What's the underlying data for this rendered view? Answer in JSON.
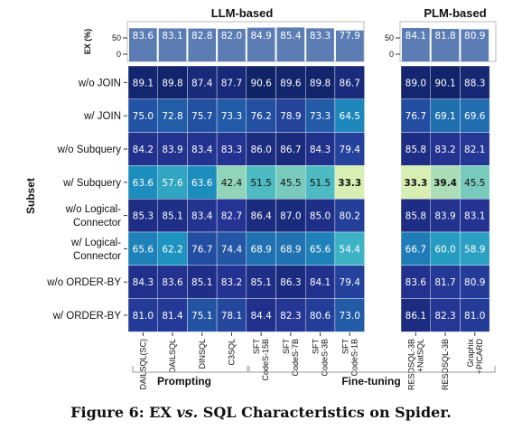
{
  "chart_data": {
    "type": "heatmap",
    "caption": {
      "prefix": "Figure 6: EX ",
      "vs": "vs.",
      "suffix": " SQL Characteristics on Spider."
    },
    "group_labels": {
      "llm": "LLM-based",
      "plm": "PLM-based"
    },
    "bottom_group_labels": {
      "prompting": "Prompting",
      "finetuning": "Fine-tuning"
    },
    "ylabel": "Subset",
    "bar_axis": {
      "label": "EX (%)",
      "ticks": [
        "50",
        "0"
      ],
      "range": [
        0,
        100
      ]
    },
    "rows": [
      [
        "w/o JOIN"
      ],
      [
        "w/ JOIN"
      ],
      [
        "w/o Subquery"
      ],
      [
        "w/ Subquery"
      ],
      [
        "w/o Logical-",
        "Connector"
      ],
      [
        "w/ Logical-",
        "Connector"
      ],
      [
        "w/o ORDER-BY"
      ],
      [
        "w/ ORDER-BY"
      ]
    ],
    "llm_columns": [
      [
        "DAILSQL(SC)"
      ],
      [
        "DAILSQL"
      ],
      [
        "DINSQL"
      ],
      [
        "C3SQL"
      ],
      [
        "SFT",
        "CodeS-15B"
      ],
      [
        "SFT",
        "CodeS-7B"
      ],
      [
        "SFT",
        "CodeS-3B"
      ],
      [
        "SFT",
        "CodeS-1B"
      ]
    ],
    "plm_columns": [
      [
        "RESDSQL-3B",
        "+NatSQL"
      ],
      [
        "RESDSQL-3B"
      ],
      [
        "Graphix",
        "+PICARD"
      ]
    ],
    "llm_overall": [
      83.6,
      83.1,
      82.8,
      82.0,
      84.9,
      85.4,
      83.3,
      77.9
    ],
    "plm_overall": [
      84.1,
      81.8,
      80.9
    ],
    "llm_values": [
      [
        89.1,
        89.8,
        87.4,
        87.7,
        90.6,
        89.6,
        89.8,
        86.7
      ],
      [
        75.0,
        72.8,
        75.7,
        73.3,
        76.2,
        78.9,
        73.3,
        64.5
      ],
      [
        84.2,
        83.9,
        83.4,
        83.3,
        86.0,
        86.7,
        84.3,
        79.4
      ],
      [
        63.6,
        57.6,
        63.6,
        42.4,
        51.5,
        45.5,
        51.5,
        33.3
      ],
      [
        85.3,
        85.1,
        83.4,
        82.7,
        86.4,
        87.0,
        85.0,
        80.2
      ],
      [
        65.6,
        62.2,
        76.7,
        74.4,
        68.9,
        68.9,
        65.6,
        54.4
      ],
      [
        84.3,
        83.6,
        85.1,
        83.2,
        85.1,
        86.3,
        84.1,
        79.4
      ],
      [
        81.0,
        81.4,
        75.1,
        78.1,
        84.4,
        82.3,
        80.6,
        73.0
      ]
    ],
    "plm_values": [
      [
        89.0,
        90.1,
        88.3
      ],
      [
        76.7,
        69.1,
        69.6
      ],
      [
        85.8,
        83.2,
        82.1
      ],
      [
        33.3,
        39.4,
        45.5
      ],
      [
        85.8,
        83.9,
        83.1
      ],
      [
        66.7,
        60.0,
        58.9
      ],
      [
        83.6,
        81.7,
        80.9
      ],
      [
        86.1,
        82.3,
        81.0
      ]
    ],
    "bold_min_cells": [
      [
        3,
        7
      ],
      [
        3,
        8
      ],
      [
        3,
        9
      ]
    ],
    "colormap": "YlGnBu",
    "bar_color": "#5b7db3"
  }
}
